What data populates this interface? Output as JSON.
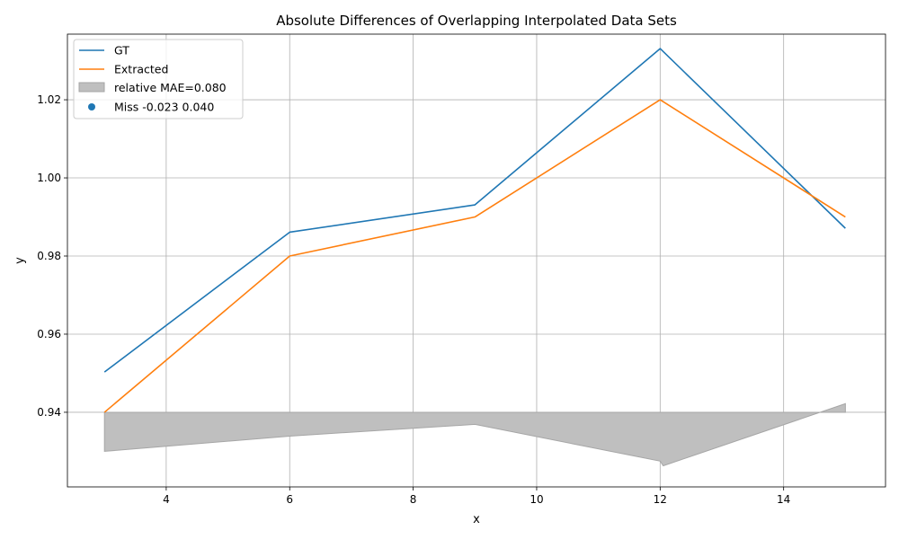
{
  "chart_data": {
    "type": "line",
    "title": "Absolute Differences of Overlapping Interpolated Data Sets",
    "xlabel": "x",
    "ylabel": "y",
    "xlim": [
      2.4,
      15.65
    ],
    "ylim": [
      0.9209,
      1.0368
    ],
    "xticks": [
      4,
      6,
      8,
      10,
      12,
      14
    ],
    "yticks": [
      0.94,
      0.96,
      0.98,
      1.0,
      1.02
    ],
    "xtick_labels": [
      "4",
      "6",
      "8",
      "10",
      "12",
      "14"
    ],
    "ytick_labels": [
      "0.94",
      "0.96",
      "0.98",
      "1.00",
      "1.02"
    ],
    "grid": true,
    "legend_position": "upper-left",
    "series": [
      {
        "name": "GT",
        "color": "#1f77b4",
        "x": [
          3,
          6,
          9,
          12,
          15
        ],
        "y": [
          0.9503,
          0.9861,
          0.9931,
          1.0331,
          0.9871
        ]
      },
      {
        "name": "Extracted",
        "color": "#ff7f0e",
        "x": [
          3,
          6,
          9,
          12,
          15
        ],
        "y": [
          0.94,
          0.98,
          0.99,
          1.02,
          0.99
        ]
      }
    ],
    "band": {
      "name": "relative MAE=0.080",
      "color": "#bfbfbf",
      "edge_color": "#a6a6a6",
      "baseline": 0.94,
      "x": [
        3,
        6,
        9,
        12,
        12.05,
        15
      ],
      "y": [
        0.93,
        0.9339,
        0.9369,
        0.9275,
        0.9263,
        0.9422
      ]
    },
    "scatter": {
      "name": "Miss -0.023 0.040",
      "color": "#1f77b4",
      "points": []
    }
  }
}
